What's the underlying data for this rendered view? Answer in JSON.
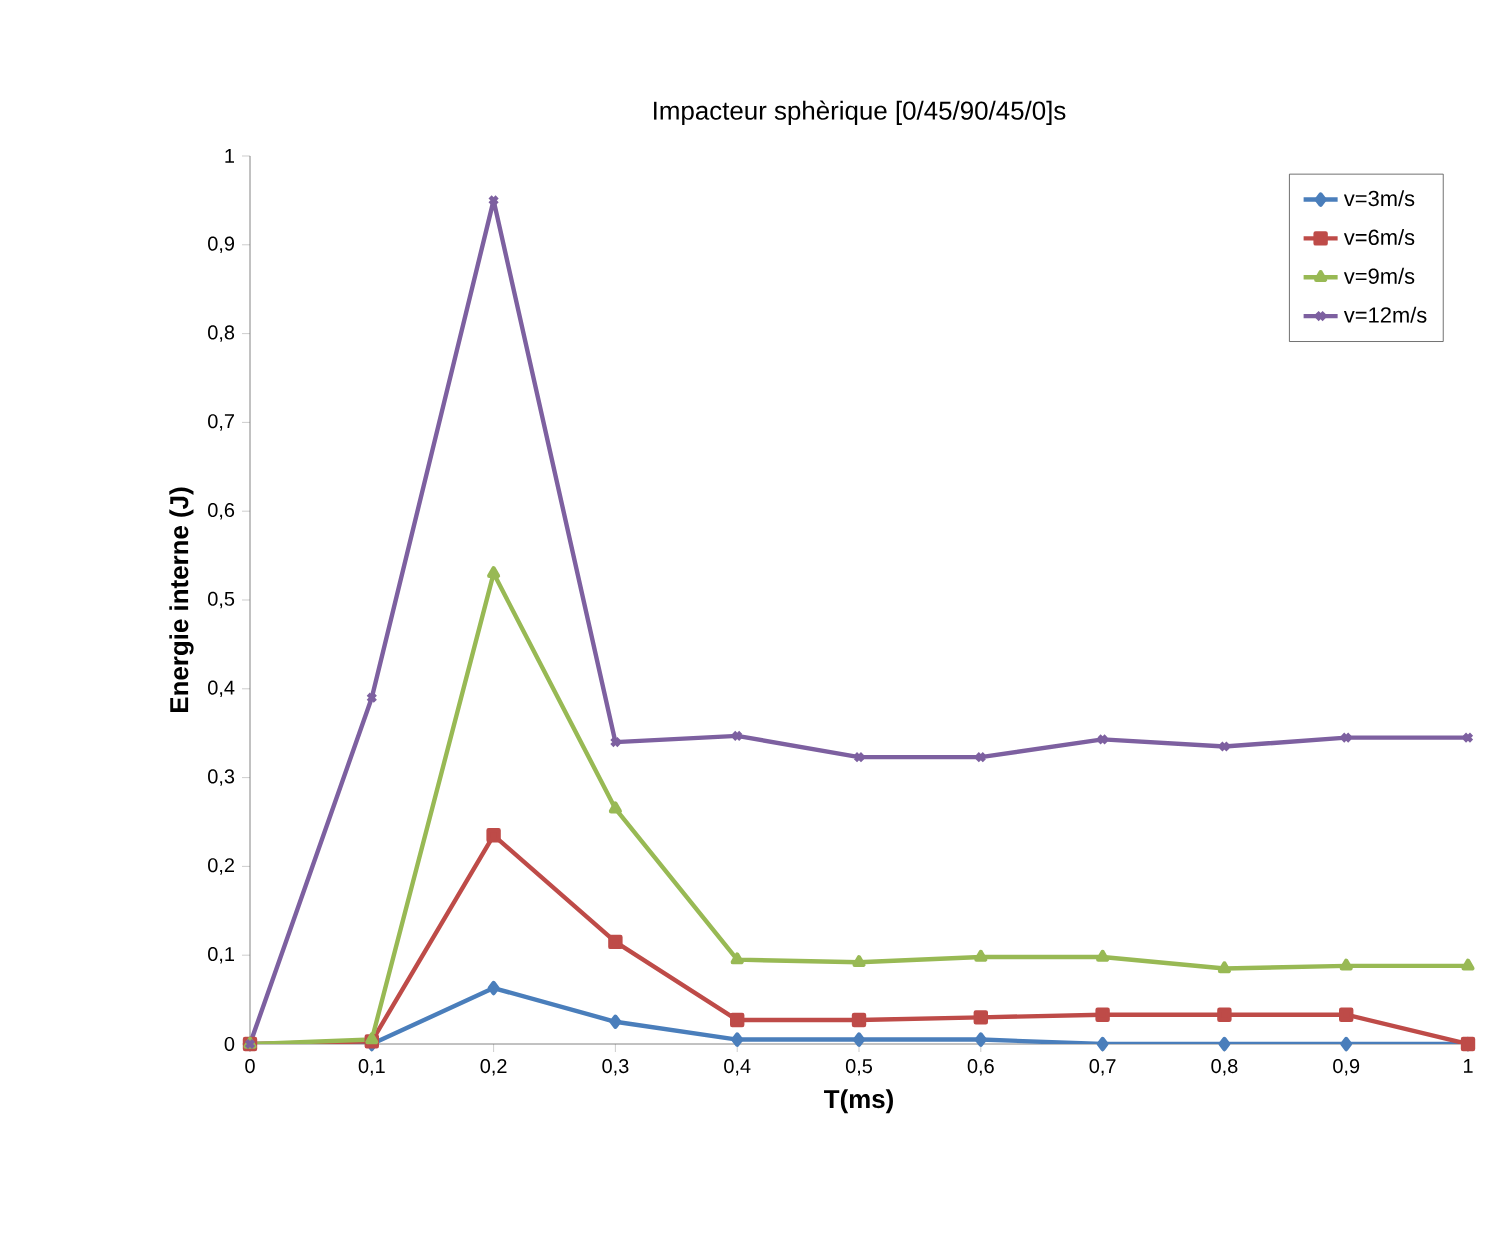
{
  "chart_data": {
    "type": "line",
    "title": "Impacteur sphèrique [0/45/90/45/0]s",
    "xlabel": "T(ms)",
    "ylabel": "Energie interne (J)",
    "x": [
      0,
      0.1,
      0.2,
      0.3,
      0.4,
      0.5,
      0.6,
      0.7,
      0.8,
      0.9,
      1
    ],
    "series": [
      {
        "name": "v=3m/s",
        "color": "#4a7ebb",
        "marker": "diamond",
        "values": [
          0,
          0,
          0.063,
          0.025,
          0.005,
          0.005,
          0.005,
          0,
          0,
          0,
          0
        ]
      },
      {
        "name": "v=6m/s",
        "color": "#be4b48",
        "marker": "square",
        "values": [
          0,
          0.003,
          0.235,
          0.115,
          0.027,
          0.027,
          0.03,
          0.033,
          0.033,
          0.033,
          0
        ]
      },
      {
        "name": "v=9m/s",
        "color": "#98b954",
        "marker": "triangle",
        "values": [
          0,
          0.005,
          0.53,
          0.265,
          0.095,
          0.092,
          0.098,
          0.098,
          0.085,
          0.088,
          0.088
        ]
      },
      {
        "name": "v=12m/s",
        "color": "#7d60a0",
        "marker": "cross",
        "values": [
          0,
          0.39,
          0.95,
          0.34,
          0.347,
          0.323,
          0.323,
          0.343,
          0.335,
          0.345,
          0.345
        ]
      }
    ],
    "xlim": [
      0,
      1
    ],
    "ylim": [
      0,
      1
    ],
    "xticks": [
      0,
      {
        "value": 0.1,
        "label": "0,1"
      },
      {
        "value": 0.2,
        "label": "0,2"
      },
      {
        "value": 0.3,
        "label": "0,3"
      },
      {
        "value": 0.4,
        "label": "0,4"
      },
      {
        "value": 0.5,
        "label": "0,5"
      },
      {
        "value": 0.6,
        "label": "0,6"
      },
      {
        "value": 0.7,
        "label": "0,7"
      },
      {
        "value": 0.8,
        "label": "0,8"
      },
      {
        "value": 0.9,
        "label": "0,9"
      },
      1
    ],
    "yticks": [
      0,
      {
        "value": 0.1,
        "label": "0,1"
      },
      {
        "value": 0.2,
        "label": "0,2"
      },
      {
        "value": 0.3,
        "label": "0,3"
      },
      {
        "value": 0.4,
        "label": "0,4"
      },
      {
        "value": 0.5,
        "label": "0,5"
      },
      {
        "value": 0.6,
        "label": "0,6"
      },
      {
        "value": 0.7,
        "label": "0,7"
      },
      {
        "value": 0.8,
        "label": "0,8"
      },
      {
        "value": 0.9,
        "label": "0,9"
      },
      1
    ],
    "grid": false,
    "legend": "top right",
    "line_style": "solid"
  }
}
